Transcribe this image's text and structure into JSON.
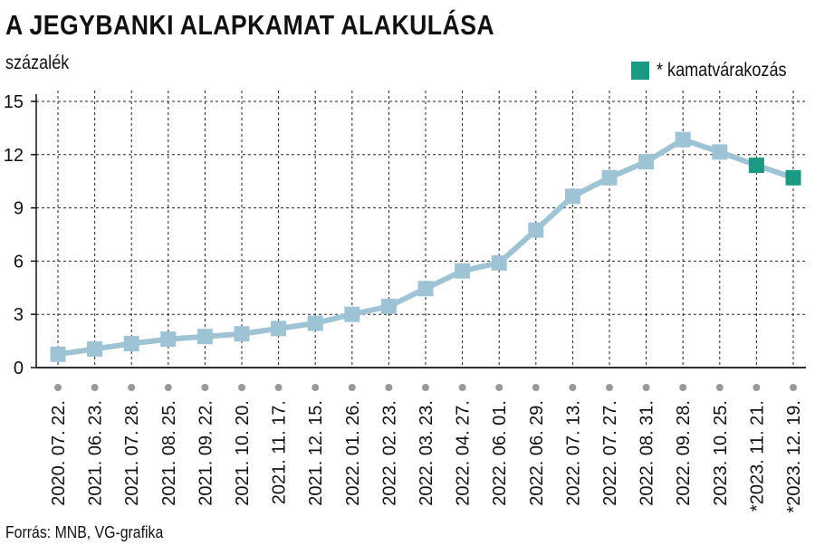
{
  "title": "A JEGYBANKI ALAPKAMAT ALAKULÁSA",
  "unit_label": "százalék",
  "legend": {
    "label": "* kamatvárakozás",
    "color": "#1a9a82"
  },
  "source": "Forrás: MNB, VG-grafika",
  "colors": {
    "line": "#9dc3d4",
    "marker": "#9dc3d4",
    "forecast_marker": "#1a9a82",
    "grid": "#222222",
    "axis": "#111111",
    "dot": "#999999"
  },
  "chart_data": {
    "type": "line",
    "title": "A JEGYBANKI ALAPKAMAT ALAKULÁSA",
    "ylabel": "százalék",
    "ylim": [
      0,
      15
    ],
    "yticks": [
      0,
      3,
      6,
      9,
      12,
      15
    ],
    "grid": "dashed vertical and horizontal",
    "legend_position": "top-right",
    "categories": [
      "2020. 07. 22.",
      "2021. 06. 23.",
      "2021. 07. 28.",
      "2021. 08. 25.",
      "2021. 09. 22.",
      "2021. 10. 20.",
      "2021. 11. 17.",
      "2021. 12. 15.",
      "2022. 01. 26.",
      "2022. 02. 23.",
      "2022. 03. 23.",
      "2022. 04. 27.",
      "2022. 06. 01.",
      "2022. 06. 29.",
      "2022. 07. 13.",
      "2022. 07. 27.",
      "2022. 08. 31.",
      "2022. 09. 28.",
      "2023. 10. 25.",
      "*2023. 11. 21.",
      "*2023. 12. 19."
    ],
    "series": [
      {
        "name": "",
        "values": [
          0.75,
          1.05,
          1.35,
          1.6,
          1.75,
          1.9,
          2.2,
          2.5,
          3.0,
          3.45,
          4.45,
          5.45,
          5.9,
          7.75,
          9.65,
          10.7,
          11.6,
          12.85,
          12.15,
          11.4,
          10.7
        ]
      }
    ],
    "forecast_indices": [
      19,
      20
    ]
  }
}
